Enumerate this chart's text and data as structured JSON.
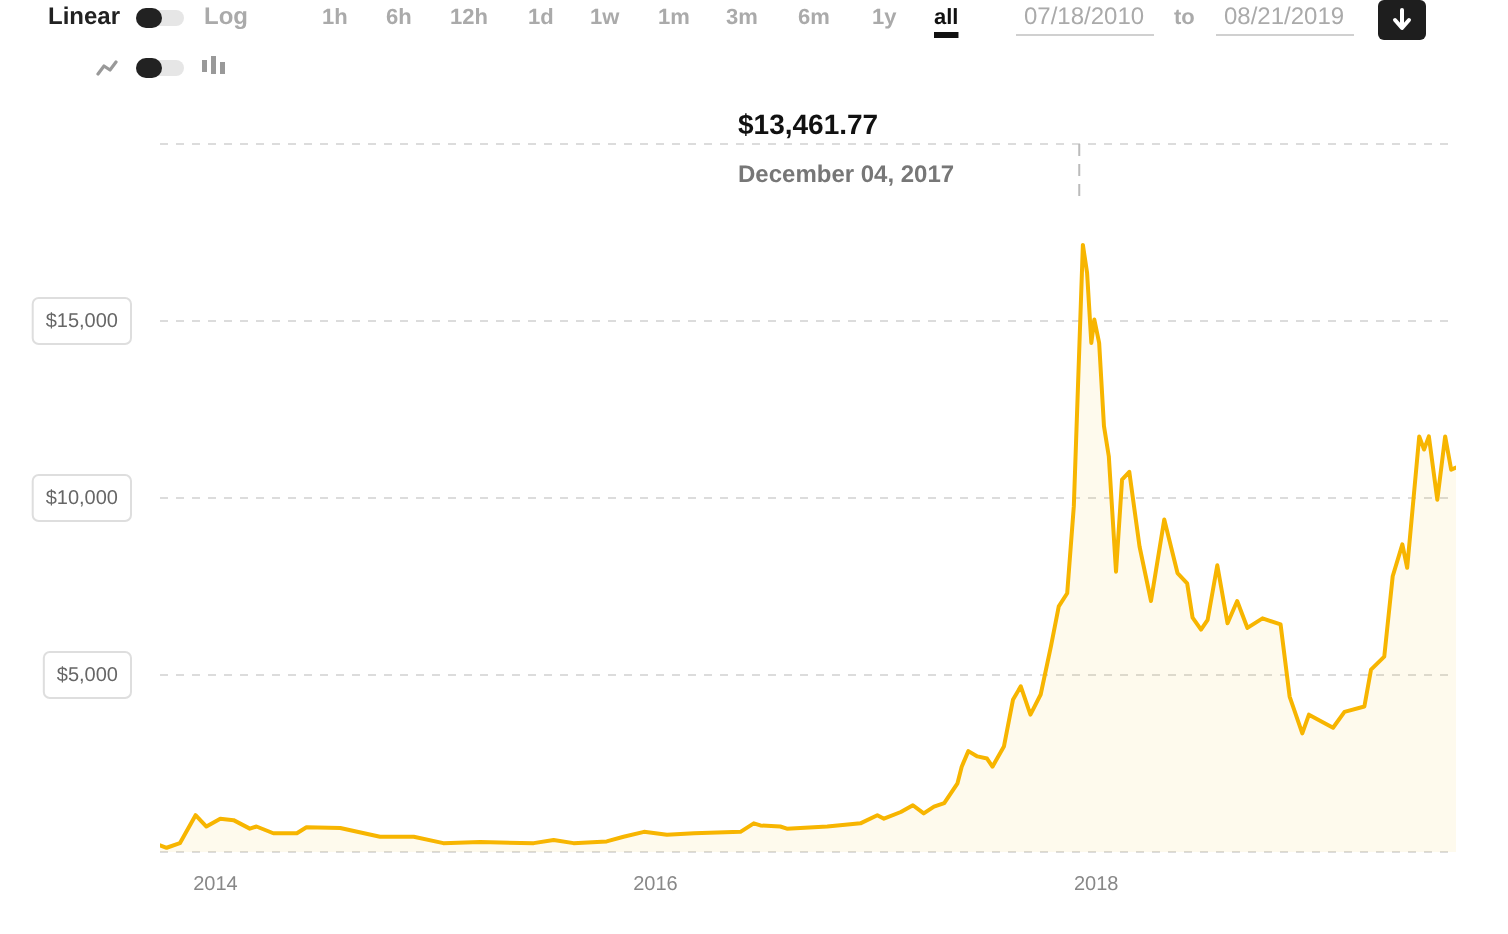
{
  "chart_data": {
    "type": "area",
    "color": "#f7b500",
    "marker": "none",
    "grid": "y",
    "xlim": [
      "2013-10-01",
      "2019-08-21"
    ],
    "xticks": [
      "2014",
      "2016",
      "2018"
    ],
    "ylim": [
      0,
      20000
    ],
    "yticks": [
      {
        "value": 0,
        "label": null
      },
      {
        "value": 5000,
        "label": "$5,000"
      },
      {
        "value": 10000,
        "label": "$10,000"
      },
      {
        "value": 15000,
        "label": "$15,000"
      },
      {
        "value": 20000,
        "label": null
      }
    ],
    "x": [
      "2013-10-01",
      "2013-10-12",
      "2013-11-03",
      "2013-11-29",
      "2013-12-17",
      "2014-01-09",
      "2014-01-31",
      "2014-02-27",
      "2014-03-10",
      "2014-04-07",
      "2014-05-16",
      "2014-06-01",
      "2014-07-27",
      "2014-10-01",
      "2014-11-26",
      "2015-01-14",
      "2015-03-16",
      "2015-06-13",
      "2015-07-16",
      "2015-08-18",
      "2015-10-12",
      "2015-11-09",
      "2015-12-13",
      "2016-01-20",
      "2016-03-05",
      "2016-05-21",
      "2016-06-12",
      "2016-06-23",
      "2016-07-26",
      "2016-08-06",
      "2016-10-12",
      "2016-12-06",
      "2017-01-03",
      "2017-01-14",
      "2017-02-11",
      "2017-03-03",
      "2017-03-21",
      "2017-04-07",
      "2017-04-24",
      "2017-05-16",
      "2017-05-23",
      "2017-06-03",
      "2017-06-18",
      "2017-07-04",
      "2017-07-13",
      "2017-08-01",
      "2017-08-16",
      "2017-08-29",
      "2017-09-14",
      "2017-10-01",
      "2017-10-18",
      "2017-10-31",
      "2017-11-14",
      "2017-11-25",
      "2017-12-10",
      "2017-12-17",
      "2017-12-24",
      "2017-12-29",
      "2018-01-06",
      "2018-01-14",
      "2018-01-22",
      "2018-02-03",
      "2018-02-13",
      "2018-02-25",
      "2018-03-14",
      "2018-04-02",
      "2018-04-24",
      "2018-05-16",
      "2018-06-01",
      "2018-06-10",
      "2018-06-24",
      "2018-07-05",
      "2018-07-21",
      "2018-08-07",
      "2018-08-23",
      "2018-09-09",
      "2018-10-04",
      "2018-11-03",
      "2018-11-18",
      "2018-12-09",
      "2018-12-20",
      "2019-01-29",
      "2019-02-17",
      "2019-03-22",
      "2019-04-02",
      "2019-04-24",
      "2019-05-08",
      "2019-05-24",
      "2019-06-01",
      "2019-06-21",
      "2019-06-29",
      "2019-07-07",
      "2019-07-21",
      "2019-08-03",
      "2019-08-13",
      "2019-08-21"
    ],
    "values": [
      190,
      120,
      250,
      1040,
      720,
      940,
      900,
      660,
      720,
      530,
      530,
      700,
      680,
      430,
      430,
      250,
      280,
      250,
      340,
      250,
      300,
      430,
      570,
      490,
      530,
      570,
      810,
      750,
      720,
      660,
      720,
      810,
      1040,
      940,
      1130,
      1320,
      1090,
      1280,
      1380,
      1940,
      2410,
      2850,
      2700,
      2640,
      2410,
      2980,
      4300,
      4680,
      3880,
      4450,
      5810,
      6940,
      7310,
      9770,
      17150,
      16360,
      14380,
      15040,
      14380,
      12030,
      11180,
      7920,
      10520,
      10740,
      8630,
      7090,
      9390,
      7880,
      7590,
      6620,
      6280,
      6560,
      8100,
      6460,
      7090,
      6330,
      6600,
      6430,
      4390,
      3350,
      3880,
      3510,
      3960,
      4110,
      5150,
      5520,
      7790,
      8690,
      8030,
      11740,
      11370,
      11740,
      9950,
      11740,
      10800,
      10860
    ],
    "ref_lines": [
      {
        "axis": "x",
        "value": "2017-12-04",
        "color": "#bbbbbb",
        "line_style": "dashed"
      }
    ],
    "annotations": [
      "$13,461.77",
      "December 04, 2017",
      "Linear",
      "Log",
      "1h",
      "6h",
      "12h",
      "1d",
      "1w",
      "1m",
      "3m",
      "6m",
      "1y",
      "all",
      "07/18/2010",
      "to",
      "08/21/2019"
    ]
  }
}
